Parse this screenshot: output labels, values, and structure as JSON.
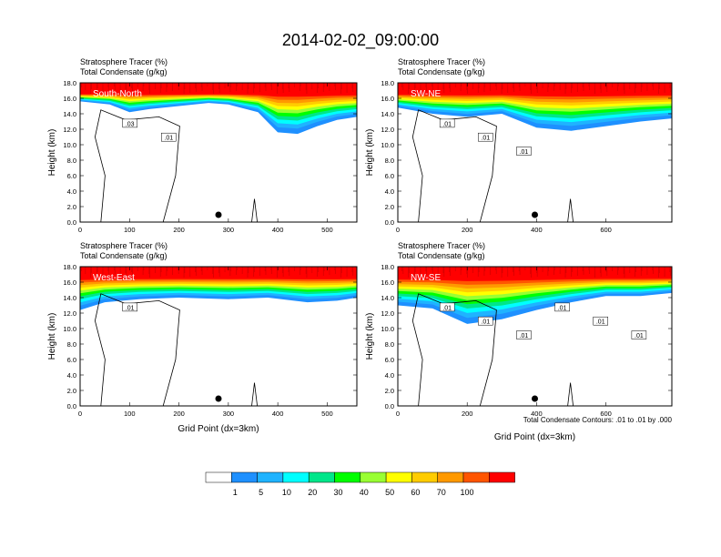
{
  "figure": {
    "title": "2014-02-02_09:00:00",
    "contour_note": "Total Condensate Contours: .01 to .01 by .000"
  },
  "colorbar": {
    "colors": [
      "#ffffff",
      "#1e90ff",
      "#1fb3ff",
      "#00ffff",
      "#00e68a",
      "#00ff00",
      "#99ff33",
      "#ffff00",
      "#ffcc00",
      "#ff9900",
      "#ff5500",
      "#ff0000"
    ],
    "labels": [
      "1",
      "5",
      "10",
      "20",
      "30",
      "40",
      "50",
      "60",
      "70",
      "100"
    ]
  },
  "chart_data": [
    {
      "type": "heatmap",
      "name": "South-North",
      "header_line1": "Stratosphere Tracer   (%)",
      "header_line2": "Total Condensate   (g/kg)",
      "xlabel": "",
      "ylabel": "Height (km)",
      "xlim": [
        0,
        560
      ],
      "ylim": [
        0,
        18
      ],
      "xticks": [
        "0",
        "100",
        "200",
        "300",
        "400",
        "500"
      ],
      "yticks": [
        "0.0",
        "2.0",
        "4.0",
        "6.0",
        "8.0",
        "10.0",
        "12.0",
        "14.0",
        "16.0",
        "18.0"
      ],
      "contour_labels": [
        ".03",
        ".01"
      ],
      "marker_x": 280,
      "tracer_base_km": [
        [
          0,
          15.6
        ],
        [
          60,
          15.2
        ],
        [
          100,
          14.2
        ],
        [
          140,
          14.6
        ],
        [
          200,
          15.0
        ],
        [
          260,
          15.4
        ],
        [
          300,
          15.2
        ],
        [
          360,
          14.2
        ],
        [
          400,
          11.6
        ],
        [
          440,
          11.4
        ],
        [
          480,
          12.4
        ],
        [
          520,
          13.2
        ],
        [
          560,
          13.6
        ]
      ]
    },
    {
      "type": "heatmap",
      "name": "SW-NE",
      "header_line1": "Stratosphere Tracer   (%)",
      "header_line2": "Total Condensate   (g/kg)",
      "xlabel": "",
      "ylabel": "Height (km)",
      "xlim": [
        0,
        790
      ],
      "ylim": [
        0,
        18
      ],
      "xticks": [
        "0",
        "200",
        "400",
        "600"
      ],
      "yticks": [
        "0.0",
        "2.0",
        "4.0",
        "6.0",
        "8.0",
        "10.0",
        "12.0",
        "14.0",
        "16.0",
        "18.0"
      ],
      "contour_labels": [
        ".01",
        ".01",
        ".01"
      ],
      "marker_x": 395,
      "tracer_base_km": [
        [
          0,
          14.8
        ],
        [
          100,
          14.0
        ],
        [
          200,
          13.6
        ],
        [
          300,
          14.0
        ],
        [
          400,
          12.2
        ],
        [
          500,
          11.8
        ],
        [
          600,
          12.4
        ],
        [
          700,
          13.0
        ],
        [
          790,
          13.4
        ]
      ]
    },
    {
      "type": "heatmap",
      "name": "West-East",
      "header_line1": "Stratosphere Tracer   (%)",
      "header_line2": "Total Condensate   (g/kg)",
      "xlabel": "Grid Point (dx=3km)",
      "ylabel": "Height (km)",
      "xlim": [
        0,
        560
      ],
      "ylim": [
        0,
        18
      ],
      "xticks": [
        "0",
        "100",
        "200",
        "300",
        "400",
        "500"
      ],
      "yticks": [
        "0.0",
        "2.0",
        "4.0",
        "6.0",
        "8.0",
        "10.0",
        "12.0",
        "14.0",
        "16.0",
        "18.0"
      ],
      "contour_labels": [
        ".01"
      ],
      "marker_x": 280,
      "tracer_base_km": [
        [
          0,
          12.4
        ],
        [
          50,
          13.4
        ],
        [
          120,
          13.8
        ],
        [
          200,
          14.0
        ],
        [
          300,
          13.8
        ],
        [
          380,
          14.0
        ],
        [
          460,
          13.4
        ],
        [
          520,
          13.6
        ],
        [
          560,
          14.0
        ]
      ]
    },
    {
      "type": "heatmap",
      "name": "NW-SE",
      "header_line1": "Stratosphere Tracer   (%)",
      "header_line2": "Total Condensate   (g/kg)",
      "xlabel": "Grid Point (dx=3km)",
      "ylabel": "Height (km)",
      "xlim": [
        0,
        790
      ],
      "ylim": [
        0,
        18
      ],
      "xticks": [
        "0",
        "200",
        "400",
        "600"
      ],
      "yticks": [
        "0.0",
        "2.0",
        "4.0",
        "6.0",
        "8.0",
        "10.0",
        "12.0",
        "14.0",
        "16.0",
        "18.0"
      ],
      "contour_labels": [
        ".01",
        ".01",
        ".01",
        ".01",
        ".01",
        ".01"
      ],
      "marker_x": 395,
      "tracer_base_km": [
        [
          0,
          13.0
        ],
        [
          100,
          12.6
        ],
        [
          200,
          10.6
        ],
        [
          300,
          11.2
        ],
        [
          400,
          12.4
        ],
        [
          500,
          13.4
        ],
        [
          600,
          14.2
        ],
        [
          700,
          14.2
        ],
        [
          790,
          14.6
        ]
      ]
    }
  ]
}
